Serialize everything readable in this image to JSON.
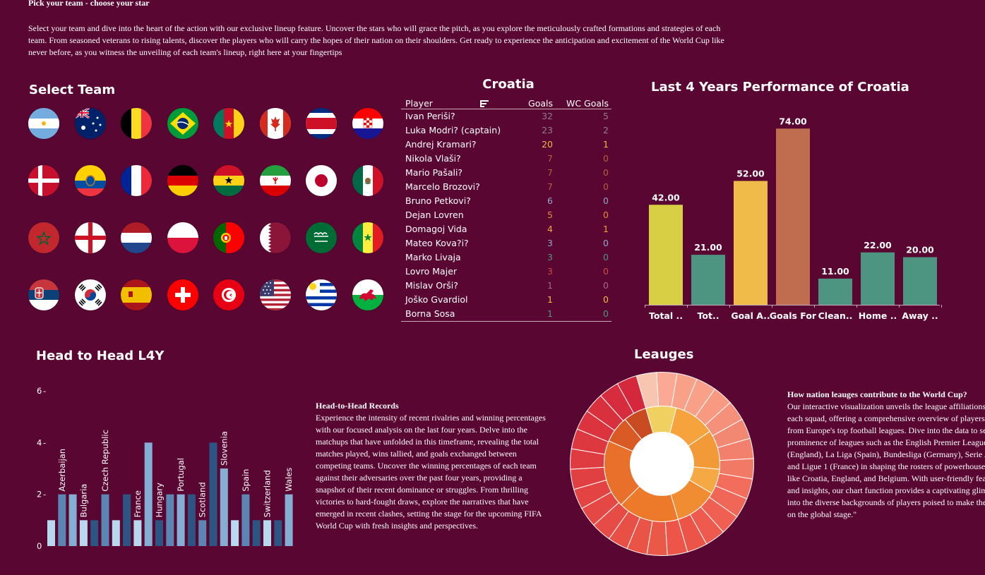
{
  "intro": {
    "title": "Pick your team - choose your star",
    "body": "Select your team and dive into the heart of the action with our exclusive lineup feature. Uncover the stars who will grace the pitch, as you explore the meticulously crafted formations and strategies of each team. From seasoned veterans to rising talents, discover the players who will carry the hopes of their nation on their shoulders. Get ready to experience the anticipation and excitement of the World Cup like never before, as you witness the unveiling of each team's lineup, right here at your fingertips"
  },
  "select_team": {
    "title": "Select Team",
    "flags": [
      "argentina",
      "australia",
      "belgium",
      "brazil",
      "cameroon",
      "canada",
      "costa-rica",
      "croatia",
      "denmark",
      "ecuador",
      "france",
      "germany",
      "ghana",
      "iran",
      "japan",
      "mexico",
      "morocco",
      "england",
      "netherlands",
      "poland",
      "portugal",
      "qatar",
      "saudi-arabia",
      "senegal",
      "serbia",
      "south-korea",
      "spain",
      "switzerland",
      "tunisia",
      "usa",
      "uruguay",
      "wales"
    ]
  },
  "squad": {
    "team": "Croatia",
    "columns": [
      "Player",
      "Goals",
      "WC Goals"
    ],
    "rows": [
      {
        "player": "Ivan Periši?",
        "goals": "32",
        "wc": "5"
      },
      {
        "player": "Luka Modri? (captain)",
        "goals": "23",
        "wc": "2"
      },
      {
        "player": "Andrej Kramari?",
        "goals": "20",
        "wc": "1"
      },
      {
        "player": "Nikola Vlaši?",
        "goals": "7",
        "wc": "0"
      },
      {
        "player": "Mario Pašali?",
        "goals": "7",
        "wc": "0"
      },
      {
        "player": "Marcelo Brozovi?",
        "goals": "7",
        "wc": "0"
      },
      {
        "player": "Bruno Petkovi?",
        "goals": "6",
        "wc": "0"
      },
      {
        "player": "Dejan Lovren",
        "goals": "5",
        "wc": "0"
      },
      {
        "player": "Domagoj Vida",
        "goals": "4",
        "wc": "1"
      },
      {
        "player": "Mateo Kova?i?",
        "goals": "3",
        "wc": "0"
      },
      {
        "player": "Marko Livaja",
        "goals": "3",
        "wc": "0"
      },
      {
        "player": "Lovro Majer",
        "goals": "3",
        "wc": "0"
      },
      {
        "player": "Mislav Orši?",
        "goals": "1",
        "wc": "0"
      },
      {
        "player": "Joško Gvardiol",
        "goals": "1",
        "wc": "0"
      },
      {
        "player": "Borna Sosa",
        "goals": "1",
        "wc": "0"
      }
    ]
  },
  "chart_data": [
    {
      "type": "bar",
      "title": "Last 4 Years Performance of Croatia",
      "categories": [
        "Total ..",
        "Tot..",
        "Goal A..",
        "Goals For",
        "Clean..",
        "Home ..",
        "Away .."
      ],
      "values": [
        42,
        21,
        52,
        74,
        11,
        22,
        20
      ],
      "value_labels": [
        "42.00",
        "21.00",
        "52.00",
        "74.00",
        "11.00",
        "22.00",
        "20.00"
      ],
      "colors": [
        "#d8cf45",
        "#4e9581",
        "#f0bb48",
        "#c06c4e",
        "#4e9581",
        "#4e9581",
        "#4e9581"
      ],
      "ylim": [
        0,
        80
      ]
    },
    {
      "type": "bar",
      "title": "Head to Head L4Y",
      "ylim": [
        0,
        6
      ],
      "yticks": [
        "0",
        "2",
        "4",
        "6"
      ],
      "categories": [
        "",
        "Azerbaijan",
        "",
        "Bulgaria",
        "",
        "Czech Republic",
        "",
        "",
        "France",
        "",
        "Hungary",
        "",
        "Portugal",
        "",
        "Scotland",
        "",
        "Slovenia",
        "",
        "Spain",
        "",
        "Switzerland",
        "",
        "Wales"
      ],
      "values": [
        1,
        2,
        2,
        1,
        1,
        2,
        1,
        2,
        1,
        4,
        1,
        2,
        2,
        2,
        1,
        4,
        3,
        1,
        2,
        1,
        1,
        1,
        2
      ],
      "colors": [
        "#b7d8ef",
        "#5b86b4",
        "#84aed4",
        "#b7d8ef",
        "#2c5584",
        "#5b86b4",
        "#b7d8ef",
        "#2c5584",
        "#b7d8ef",
        "#84aed4",
        "#2c5584",
        "#5b86b4",
        "#84aed4",
        "#2c5584",
        "#5b86b4",
        "#2c5584",
        "#84aed4",
        "#b7d8ef",
        "#5b86b4",
        "#2c5584",
        "#b7d8ef",
        "#2c5584",
        "#84aed4"
      ]
    },
    {
      "type": "pie",
      "title": "Leauges",
      "inner_ring": [
        {
          "color": "#f6a33e"
        },
        {
          "color": "#f39a38"
        },
        {
          "color": "#f5a944"
        },
        {
          "color": "#f08d33"
        },
        {
          "color": "#ec7a2a"
        },
        {
          "color": "#e8702a"
        },
        {
          "color": "#d95a24"
        },
        {
          "color": "#c84b22"
        }
      ],
      "outer_ring_segments": 28
    }
  ],
  "h2h_text": {
    "title": "Head-to-Head Records",
    "body": "Experience the intensity of recent rivalries and winning percentages with our focused analysis on the last four years. Delve into the matchups that have unfolded in this timeframe, revealing the total matches played, wins tallied, and goals exchanged between competing teams. Uncover the winning percentages of each team against their adversaries over the past four years, providing a snapshot of their recent dominance or struggles. From thrilling victories to hard-fought draws, explore the narratives that have emerged in recent clashes, setting the stage for the upcoming FIFA World Cup with fresh insights and perspectives."
  },
  "leagues_text": {
    "title": "How nation leauges contribute to the World Cup?",
    "body": "Our interactive visualization unveils the league affiliations within each squad, offering a comprehensive overview of players drawn from Europe's top football leagues. Dive into the data to see the prominence of leagues such as the English Premier League (England), La Liga (Spain), Bundesliga (Germany), Serie A (Italy) and Ligue 1 (France) in shaping the rosters of powerhouse teams like Croatia, England, and Belgium. With user-friendly features and insights, our chart function provides a captivating glimpse into the diverse backgrounds of players poised to make their mark on the global stage.\""
  },
  "colors": {
    "background": "#5a0632",
    "goal_high": "#f0bb48",
    "goal_mid": "#9c6a5e",
    "goal_low": "#4e9581",
    "goal_neutral": "#8ea9c8"
  }
}
